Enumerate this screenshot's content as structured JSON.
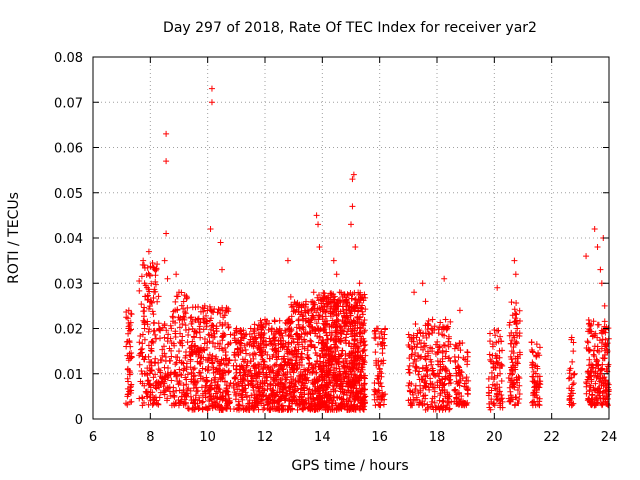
{
  "chart_data": {
    "type": "scatter",
    "title": "Day 297 of 2018, Rate Of TEC Index for receiver yar2",
    "xlabel": "GPS time / hours",
    "ylabel": "ROTI / TECUs",
    "xlim": [
      6,
      24
    ],
    "ylim": [
      0,
      0.08
    ],
    "xticks": [
      6,
      8,
      10,
      12,
      14,
      16,
      18,
      20,
      22,
      24
    ],
    "yticks": [
      0,
      0.01,
      0.02,
      0.03,
      0.04,
      0.05,
      0.06,
      0.07,
      0.08
    ],
    "xtick_labels": [
      "6",
      "8",
      "10",
      "12",
      "14",
      "16",
      "18",
      "20",
      "22",
      "24"
    ],
    "ytick_labels": [
      "0",
      "0.01",
      "0.02",
      "0.03",
      "0.04",
      "0.05",
      "0.06",
      "0.07",
      "0.08"
    ],
    "grid": true,
    "marker": "+",
    "color": "#ff0000",
    "series": [
      {
        "name": "ROTI",
        "points": [
          [
            7.2,
            0.005
          ],
          [
            7.2,
            0.014
          ],
          [
            7.25,
            0.02
          ],
          [
            7.25,
            0.024
          ],
          [
            7.3,
            0.007
          ],
          [
            7.3,
            0.016
          ],
          [
            7.75,
            0.035
          ],
          [
            7.8,
            0.03
          ],
          [
            7.8,
            0.02
          ],
          [
            7.85,
            0.01
          ],
          [
            7.9,
            0.005
          ],
          [
            7.95,
            0.037
          ],
          [
            8.0,
            0.026
          ],
          [
            8.05,
            0.015
          ],
          [
            8.3,
            0.008
          ],
          [
            8.4,
            0.013
          ],
          [
            8.5,
            0.035
          ],
          [
            8.5,
            0.021
          ],
          [
            8.55,
            0.063
          ],
          [
            8.55,
            0.057
          ],
          [
            8.55,
            0.041
          ],
          [
            8.6,
            0.031
          ],
          [
            8.9,
            0.032
          ],
          [
            9.0,
            0.028
          ],
          [
            9.0,
            0.015
          ],
          [
            9.2,
            0.005
          ],
          [
            9.3,
            0.017
          ],
          [
            9.5,
            0.011
          ],
          [
            9.8,
            0.007
          ],
          [
            9.9,
            0.025
          ],
          [
            10.0,
            0.013
          ],
          [
            10.05,
            0.004
          ],
          [
            10.1,
            0.042
          ],
          [
            10.15,
            0.073
          ],
          [
            10.15,
            0.07
          ],
          [
            10.3,
            0.02
          ],
          [
            10.45,
            0.039
          ],
          [
            10.5,
            0.033
          ],
          [
            10.5,
            0.01
          ],
          [
            10.7,
            0.006
          ],
          [
            11.2,
            0.018
          ],
          [
            11.5,
            0.02
          ],
          [
            11.8,
            0.012
          ],
          [
            12.0,
            0.022
          ],
          [
            12.3,
            0.009
          ],
          [
            12.8,
            0.035
          ],
          [
            12.9,
            0.027
          ],
          [
            13.1,
            0.013
          ],
          [
            13.5,
            0.024
          ],
          [
            13.7,
            0.028
          ],
          [
            13.8,
            0.045
          ],
          [
            13.85,
            0.043
          ],
          [
            13.9,
            0.038
          ],
          [
            14.0,
            0.015
          ],
          [
            14.4,
            0.035
          ],
          [
            14.5,
            0.032
          ],
          [
            14.7,
            0.027
          ],
          [
            15.0,
            0.043
          ],
          [
            15.05,
            0.047
          ],
          [
            15.05,
            0.053
          ],
          [
            15.1,
            0.054
          ],
          [
            15.15,
            0.038
          ],
          [
            15.3,
            0.03
          ],
          [
            15.5,
            0.014
          ],
          [
            15.9,
            0.02
          ],
          [
            16.0,
            0.011
          ],
          [
            16.05,
            0.005
          ],
          [
            17.2,
            0.028
          ],
          [
            17.25,
            0.021
          ],
          [
            17.5,
            0.03
          ],
          [
            17.6,
            0.026
          ],
          [
            17.8,
            0.02
          ],
          [
            18.1,
            0.016
          ],
          [
            18.25,
            0.031
          ],
          [
            18.3,
            0.022
          ],
          [
            18.8,
            0.024
          ],
          [
            18.9,
            0.009
          ],
          [
            19.95,
            0.016
          ],
          [
            20.1,
            0.029
          ],
          [
            20.2,
            0.01
          ],
          [
            20.7,
            0.035
          ],
          [
            20.75,
            0.032
          ],
          [
            20.8,
            0.02
          ],
          [
            21.3,
            0.017
          ],
          [
            21.5,
            0.008
          ],
          [
            22.7,
            0.018
          ],
          [
            22.8,
            0.01
          ],
          [
            23.2,
            0.036
          ],
          [
            23.3,
            0.021
          ],
          [
            23.5,
            0.042
          ],
          [
            23.6,
            0.038
          ],
          [
            23.7,
            0.033
          ],
          [
            23.75,
            0.03
          ],
          [
            23.8,
            0.04
          ],
          [
            23.85,
            0.025
          ],
          [
            23.9,
            0.006
          ]
        ],
        "clusters": [
          {
            "x_range": [
              7.15,
              7.35
            ],
            "y_range": [
              0.003,
              0.024
            ],
            "count": 45
          },
          {
            "x_range": [
              7.6,
              8.3
            ],
            "y_range": [
              0.003,
              0.035
            ],
            "count": 160
          },
          {
            "x_range": [
              8.3,
              8.7
            ],
            "y_range": [
              0.004,
              0.022
            ],
            "count": 60
          },
          {
            "x_range": [
              8.7,
              9.3
            ],
            "y_range": [
              0.003,
              0.028
            ],
            "count": 120
          },
          {
            "x_range": [
              9.3,
              10.8
            ],
            "y_range": [
              0.002,
              0.025
            ],
            "count": 380
          },
          {
            "x_range": [
              10.9,
              11.6
            ],
            "y_range": [
              0.002,
              0.02
            ],
            "count": 170
          },
          {
            "x_range": [
              11.6,
              12.9
            ],
            "y_range": [
              0.002,
              0.022
            ],
            "count": 420
          },
          {
            "x_range": [
              12.9,
              13.8
            ],
            "y_range": [
              0.002,
              0.026
            ],
            "count": 330
          },
          {
            "x_range": [
              13.8,
              15.5
            ],
            "y_range": [
              0.002,
              0.028
            ],
            "count": 900
          },
          {
            "x_range": [
              15.8,
              16.2
            ],
            "y_range": [
              0.003,
              0.02
            ],
            "count": 70
          },
          {
            "x_range": [
              17.0,
              17.6
            ],
            "y_range": [
              0.003,
              0.02
            ],
            "count": 100
          },
          {
            "x_range": [
              17.6,
              18.5
            ],
            "y_range": [
              0.002,
              0.022
            ],
            "count": 180
          },
          {
            "x_range": [
              18.6,
              19.1
            ],
            "y_range": [
              0.003,
              0.017
            ],
            "count": 80
          },
          {
            "x_range": [
              19.8,
              20.3
            ],
            "y_range": [
              0.002,
              0.02
            ],
            "count": 80
          },
          {
            "x_range": [
              20.5,
              20.9
            ],
            "y_range": [
              0.003,
              0.026
            ],
            "count": 90
          },
          {
            "x_range": [
              21.3,
              21.6
            ],
            "y_range": [
              0.003,
              0.017
            ],
            "count": 60
          },
          {
            "x_range": [
              22.6,
              22.8
            ],
            "y_range": [
              0.003,
              0.018
            ],
            "count": 30
          },
          {
            "x_range": [
              23.2,
              24.0
            ],
            "y_range": [
              0.003,
              0.022
            ],
            "count": 200
          }
        ]
      }
    ]
  }
}
